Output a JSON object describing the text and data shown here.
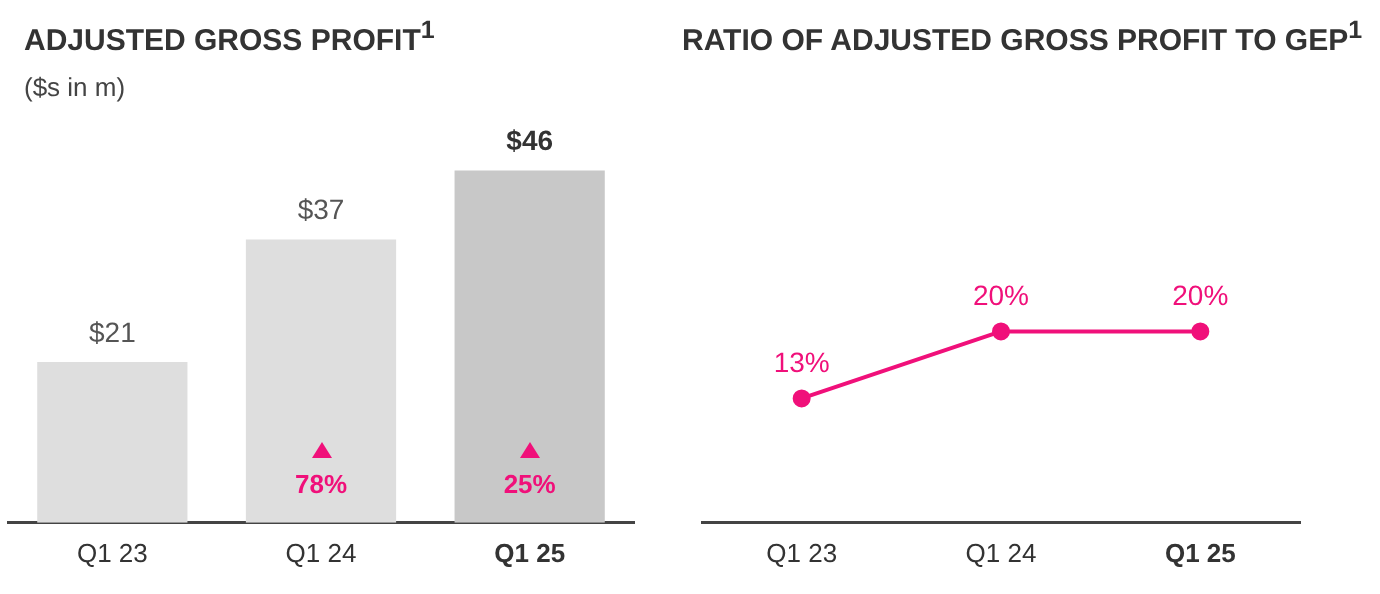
{
  "chart_data": [
    {
      "type": "bar",
      "title": "ADJUSTED GROSS PROFIT$^{1}$",
      "subtitle": "($s in m)",
      "categories": [
        "Q1 23",
        "Q1 24",
        "Q1 25"
      ],
      "values": [
        21,
        37,
        46
      ],
      "colors": [
        "#dedede",
        "#dedede",
        "#c8c8c8"
      ],
      "value_labels": [
        "$21",
        "$37",
        "$46"
      ],
      "annotations": [
        "78%",
        "25%"
      ],
      "legend": false
    },
    {
      "type": "line",
      "title": "RATIO OF ADJUSTED GROSS PROFIT TO GEP$^{1}$",
      "categories": [
        "Q1 23",
        "Q1 24",
        "Q1 25"
      ],
      "values": [
        13,
        20,
        20
      ],
      "color": "#f0107a",
      "marker": "circle",
      "value_labels": [
        "13%",
        "20%",
        "20%"
      ],
      "legend": false
    }
  ]
}
